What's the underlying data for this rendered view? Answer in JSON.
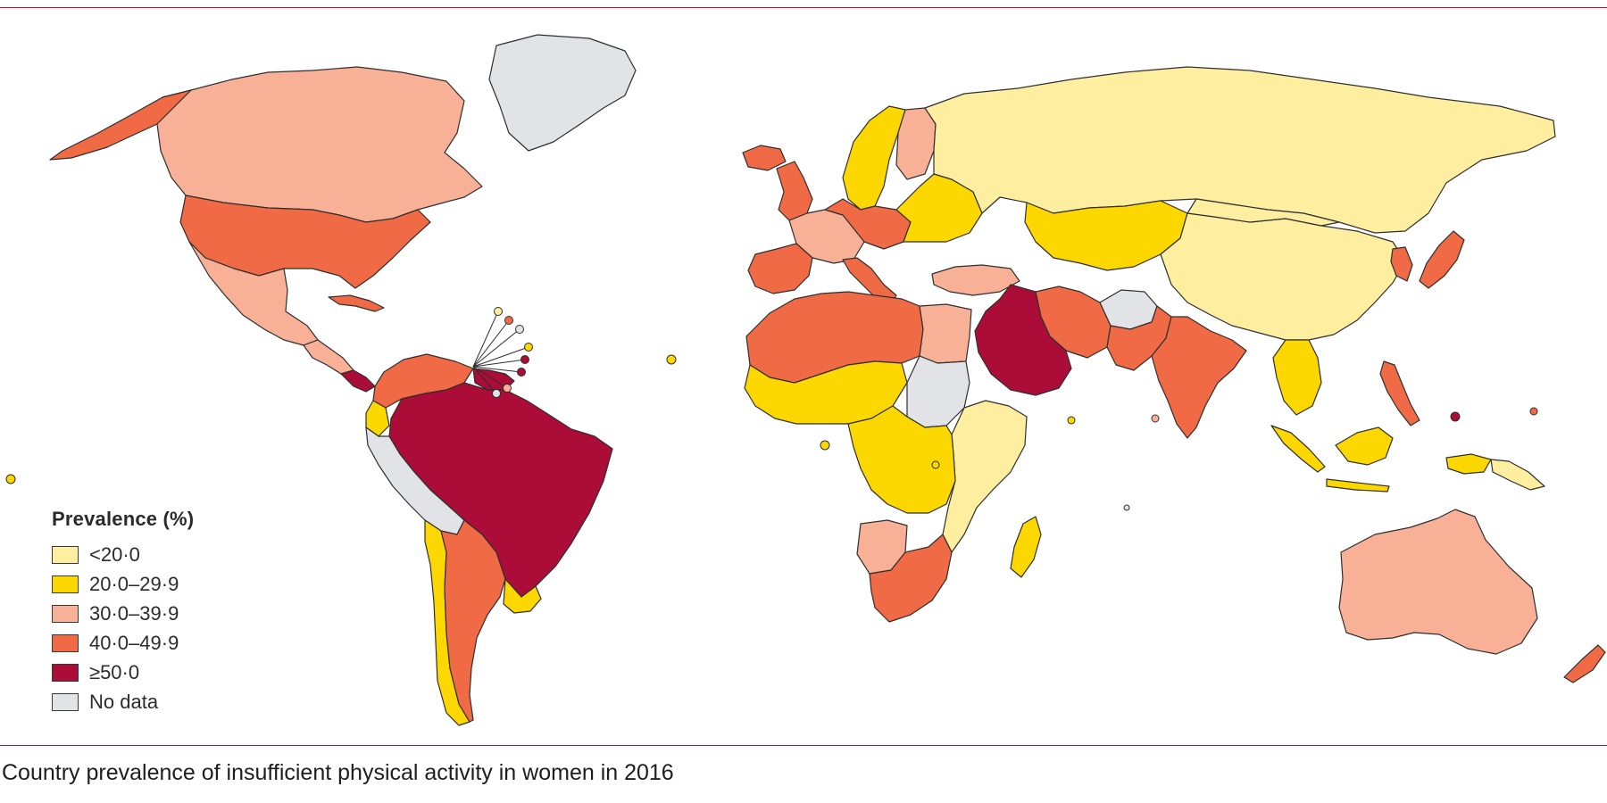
{
  "legend": {
    "title": "Prevalence (%)",
    "items": [
      {
        "label": "<20·0",
        "color": "#fdeea0"
      },
      {
        "label": "20·0–29·9",
        "color": "#fcd800"
      },
      {
        "label": "30·0–39·9",
        "color": "#f8b197"
      },
      {
        "label": "40·0–49·9",
        "color": "#ef6a45"
      },
      {
        "label": "≥50·0",
        "color": "#ab0c38"
      },
      {
        "label": "No data",
        "color": "#e1e3e6"
      }
    ]
  },
  "caption": "Country prevalence of insufficient physical activity in women in 2016",
  "colors": {
    "frame": "#b01736",
    "border": "#2f2f2f",
    "background": "#ffffff"
  },
  "map_regions": [
    {
      "name": "Greenland",
      "category": "No data"
    },
    {
      "name": "Canada",
      "category": "30·0–39·9"
    },
    {
      "name": "Alaska (USA)",
      "category": "40·0–49·9"
    },
    {
      "name": "USA",
      "category": "40·0–49·9"
    },
    {
      "name": "Mexico",
      "category": "30·0–39·9"
    },
    {
      "name": "Central America",
      "category": "30·0–39·9"
    },
    {
      "name": "Costa Rica / Panama",
      "category": "≥50·0"
    },
    {
      "name": "Cuba",
      "category": "40·0–49·9"
    },
    {
      "name": "Colombia / Venezuela",
      "category": "40·0–49·9"
    },
    {
      "name": "Guyana / Suriname",
      "category": "≥50·0"
    },
    {
      "name": "Brazil",
      "category": "≥50·0"
    },
    {
      "name": "Ecuador",
      "category": "20·0–29·9"
    },
    {
      "name": "Peru / Bolivia",
      "category": "No data"
    },
    {
      "name": "Chile",
      "category": "20·0–29·9"
    },
    {
      "name": "Argentina",
      "category": "40·0–49·9"
    },
    {
      "name": "Uruguay",
      "category": "20·0–29·9"
    },
    {
      "name": "Iceland",
      "category": "40·0–49·9"
    },
    {
      "name": "United Kingdom",
      "category": "40·0–49·9"
    },
    {
      "name": "Scandinavia",
      "category": "20·0–29·9"
    },
    {
      "name": "Finland",
      "category": "30·0–39·9"
    },
    {
      "name": "Western Europe",
      "category": "30·0–39·9"
    },
    {
      "name": "Central Europe",
      "category": "40·0–49·9"
    },
    {
      "name": "Iberia",
      "category": "40·0–49·9"
    },
    {
      "name": "Italy",
      "category": "40·0–49·9"
    },
    {
      "name": "Eastern Europe",
      "category": "20·0–29·9"
    },
    {
      "name": "Russia",
      "category": "<20·0"
    },
    {
      "name": "Kazakhstan",
      "category": "20·0–29·9"
    },
    {
      "name": "Turkey",
      "category": "30·0–39·9"
    },
    {
      "name": "Iran",
      "category": "40·0–49·9"
    },
    {
      "name": "Iraq / Saudi Arabia",
      "category": "≥50·0"
    },
    {
      "name": "Afghanistan",
      "category": "No data"
    },
    {
      "name": "Pakistan",
      "category": "40·0–49·9"
    },
    {
      "name": "India",
      "category": "40·0–49·9"
    },
    {
      "name": "China",
      "category": "<20·0"
    },
    {
      "name": "Mongolia",
      "category": "<20·0"
    },
    {
      "name": "Korea",
      "category": "40·0–49·9"
    },
    {
      "name": "Japan",
      "category": "40·0–49·9"
    },
    {
      "name": "Southeast Asia",
      "category": "20·0–29·9"
    },
    {
      "name": "Philippines",
      "category": "40·0–49·9"
    },
    {
      "name": "Indonesia",
      "category": "20·0–29·9"
    },
    {
      "name": "Papua New Guinea",
      "category": "<20·0"
    },
    {
      "name": "Australia",
      "category": "30·0–39·9"
    },
    {
      "name": "New Zealand",
      "category": "40·0–49·9"
    },
    {
      "name": "North Africa",
      "category": "40·0–49·9"
    },
    {
      "name": "Egypt",
      "category": "30·0–39·9"
    },
    {
      "name": "West Africa",
      "category": "20·0–29·9"
    },
    {
      "name": "Sudan",
      "category": "No data"
    },
    {
      "name": "East Africa",
      "category": "<20·0"
    },
    {
      "name": "Central Africa",
      "category": "20·0–29·9"
    },
    {
      "name": "Angola",
      "category": "30·0–39·9"
    },
    {
      "name": "Southern Africa",
      "category": "40·0–49·9"
    },
    {
      "name": "Madagascar",
      "category": "20·0–29·9"
    }
  ]
}
